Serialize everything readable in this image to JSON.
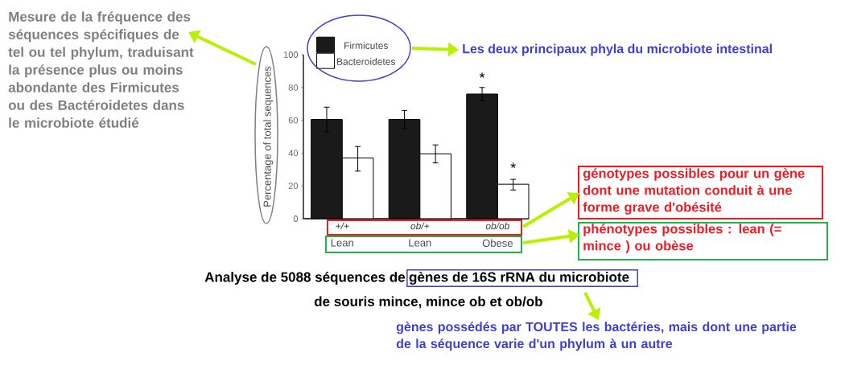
{
  "chart_data": {
    "type": "bar",
    "categories": [
      "+/+",
      "ob/+",
      "ob/ob"
    ],
    "series": [
      {
        "name": "Firmicutes",
        "color": "#1a1a1a",
        "values": [
          60.5,
          60.5,
          76
        ],
        "errors": [
          7.5,
          5.5,
          4
        ]
      },
      {
        "name": "Bacteroidetes",
        "color": "#ffffff",
        "values": [
          37,
          39.5,
          21
        ],
        "errors": [
          [
            29,
            44
          ],
          [
            34,
            45
          ],
          [
            17.5,
            24
          ]
        ]
      }
    ],
    "ylim": [
      0,
      100
    ],
    "yticks": [
      0,
      20,
      40,
      60,
      80,
      100
    ],
    "ylabel": "Percentage of total sequences",
    "legend": "top left",
    "annotations": [
      "Mesure de la fréquence des séquences spécifiques de tel ou tel phylum, traduisant  la présence plus ou moins abondante des Firmicutes ou des Bactéroidetes dans le microbiote étudié",
      "Les deux principaux phyla du microbiote intestinal",
      "génotypes possibles pour un gène dont une mutation conduit à une forme grave d'obésité",
      "phénotypes possibles : lean (= mince ) ou obèse",
      "Analyse de 5088 séquences de",
      "gènes de 16S rRNA du microbiote",
      "de souris  mince, mince ob et ob/ob",
      "gènes possédés par TOUTES les bactéries, mais dont une partie de la séquence varie d'un phylum à un autre",
      "Lean",
      "Lean",
      "Obese",
      "*",
      "*"
    ]
  }
}
